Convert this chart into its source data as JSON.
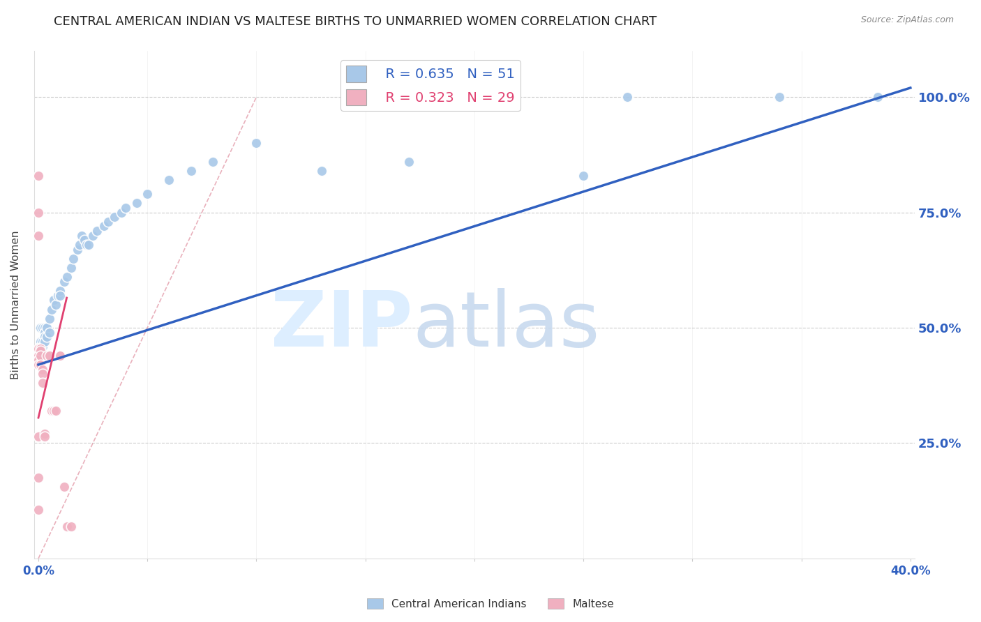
{
  "title": "CENTRAL AMERICAN INDIAN VS MALTESE BIRTHS TO UNMARRIED WOMEN CORRELATION CHART",
  "source": "Source: ZipAtlas.com",
  "ylabel": "Births to Unmarried Women",
  "ytick_labels": [
    "100.0%",
    "75.0%",
    "50.0%",
    "25.0%"
  ],
  "ytick_values": [
    1.0,
    0.75,
    0.5,
    0.25
  ],
  "legend_blue_r": "R = 0.635",
  "legend_blue_n": "N = 51",
  "legend_pink_r": "R = 0.323",
  "legend_pink_n": "N = 29",
  "legend_label_blue": "Central American Indians",
  "legend_label_pink": "Maltese",
  "blue_color": "#a8c8e8",
  "pink_color": "#f0b0c0",
  "blue_line_color": "#3060c0",
  "pink_line_color": "#e04070",
  "diag_line_color": "#e090a0",
  "blue_scatter_x": [
    0.001,
    0.001,
    0.001,
    0.001,
    0.001,
    0.002,
    0.002,
    0.002,
    0.003,
    0.003,
    0.003,
    0.003,
    0.004,
    0.004,
    0.005,
    0.005,
    0.006,
    0.007,
    0.008,
    0.009,
    0.01,
    0.01,
    0.012,
    0.013,
    0.015,
    0.016,
    0.018,
    0.019,
    0.02,
    0.021,
    0.022,
    0.023,
    0.025,
    0.027,
    0.03,
    0.032,
    0.035,
    0.038,
    0.04,
    0.045,
    0.05,
    0.06,
    0.07,
    0.08,
    0.1,
    0.13,
    0.17,
    0.25,
    0.27,
    0.34,
    0.385
  ],
  "blue_scatter_y": [
    0.5,
    0.47,
    0.46,
    0.45,
    0.44,
    0.5,
    0.47,
    0.46,
    0.5,
    0.49,
    0.48,
    0.47,
    0.5,
    0.48,
    0.52,
    0.49,
    0.54,
    0.56,
    0.55,
    0.57,
    0.58,
    0.57,
    0.6,
    0.61,
    0.63,
    0.65,
    0.67,
    0.68,
    0.7,
    0.69,
    0.68,
    0.68,
    0.7,
    0.71,
    0.72,
    0.73,
    0.74,
    0.75,
    0.76,
    0.77,
    0.79,
    0.82,
    0.84,
    0.86,
    0.9,
    0.84,
    0.86,
    0.83,
    1.0,
    1.0,
    1.0
  ],
  "pink_scatter_x": [
    0.0,
    0.0,
    0.0,
    0.0,
    0.0,
    0.001,
    0.001,
    0.001,
    0.001,
    0.002,
    0.002,
    0.002,
    0.003,
    0.003,
    0.004,
    0.005,
    0.006,
    0.007,
    0.008,
    0.01,
    0.01,
    0.012,
    0.013,
    0.015,
    0.0,
    0.0,
    0.0,
    0.0,
    0.0
  ],
  "pink_scatter_y": [
    0.455,
    0.44,
    0.43,
    0.42,
    0.265,
    0.455,
    0.45,
    0.44,
    0.42,
    0.41,
    0.4,
    0.38,
    0.27,
    0.265,
    0.44,
    0.44,
    0.32,
    0.32,
    0.32,
    0.44,
    0.44,
    0.155,
    0.07,
    0.07,
    0.83,
    0.75,
    0.7,
    0.175,
    0.105
  ],
  "blue_line_x": [
    0.0,
    0.4
  ],
  "blue_line_y": [
    0.42,
    1.02
  ],
  "pink_line_x": [
    0.0,
    0.013
  ],
  "pink_line_y": [
    0.305,
    0.565
  ],
  "diag_line_x": [
    0.0,
    0.1
  ],
  "diag_line_y": [
    0.0,
    1.0
  ],
  "xlim": [
    -0.002,
    0.402
  ],
  "ylim": [
    0.0,
    1.1
  ],
  "title_fontsize": 13,
  "axis_label_fontsize": 11,
  "tick_fontsize": 11,
  "marker_size": 110,
  "marker_linewidth": 1.2
}
